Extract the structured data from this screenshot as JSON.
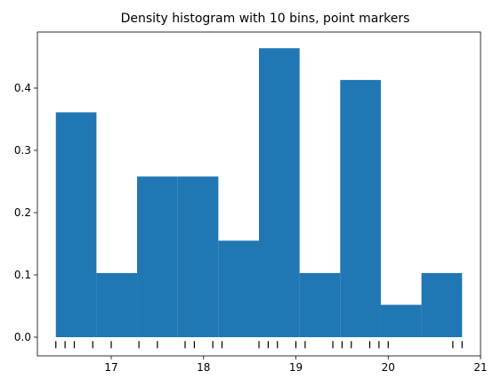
{
  "chart_data": {
    "type": "bar",
    "title": "Density histogram with 10 bins, point markers",
    "xlabel": "",
    "ylabel": "",
    "xlim": [
      16.2,
      21.0
    ],
    "ylim": [
      -0.03,
      0.49
    ],
    "bar_color": "#1f77b4",
    "marker_color": "#000000",
    "bins": [
      {
        "x0": 16.4,
        "x1": 16.84,
        "density": 0.361
      },
      {
        "x0": 16.84,
        "x1": 17.28,
        "density": 0.103
      },
      {
        "x0": 17.28,
        "x1": 17.72,
        "density": 0.258
      },
      {
        "x0": 17.72,
        "x1": 18.16,
        "density": 0.258
      },
      {
        "x0": 18.16,
        "x1": 18.6,
        "density": 0.155
      },
      {
        "x0": 18.6,
        "x1": 19.04,
        "density": 0.464
      },
      {
        "x0": 19.04,
        "x1": 19.48,
        "density": 0.103
      },
      {
        "x0": 19.48,
        "x1": 19.92,
        "density": 0.413
      },
      {
        "x0": 19.92,
        "x1": 20.36,
        "density": 0.052
      },
      {
        "x0": 20.36,
        "x1": 20.8,
        "density": 0.103
      }
    ],
    "points": [
      16.4,
      16.5,
      16.6,
      16.8,
      17.0,
      17.3,
      17.5,
      17.8,
      17.9,
      18.1,
      18.2,
      18.6,
      18.7,
      18.8,
      19.0,
      19.1,
      19.4,
      19.5,
      19.6,
      19.8,
      19.9,
      20.0,
      20.7,
      20.8
    ],
    "points_y": -0.012,
    "x_ticks": [
      {
        "value": 17,
        "label": "17"
      },
      {
        "value": 18,
        "label": "18"
      },
      {
        "value": 19,
        "label": "19"
      },
      {
        "value": 20,
        "label": "20"
      },
      {
        "value": 21,
        "label": "21"
      }
    ],
    "y_ticks": [
      {
        "value": 0.0,
        "label": "0.0"
      },
      {
        "value": 0.1,
        "label": "0.1"
      },
      {
        "value": 0.2,
        "label": "0.2"
      },
      {
        "value": 0.3,
        "label": "0.3"
      },
      {
        "value": 0.4,
        "label": "0.4"
      }
    ],
    "grid": false,
    "legend": "none"
  }
}
